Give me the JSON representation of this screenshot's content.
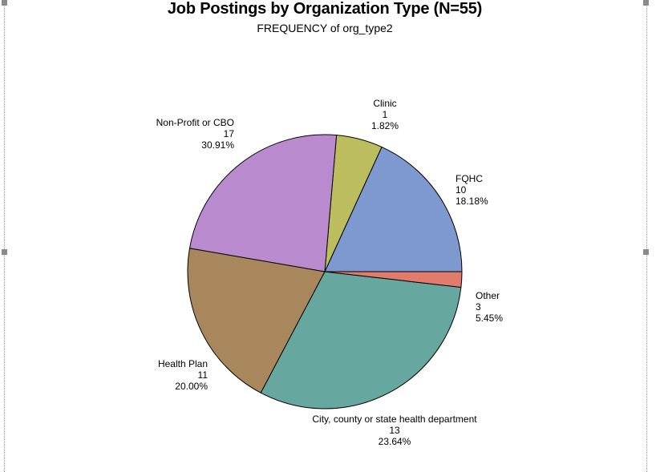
{
  "chart_data": {
    "type": "pie",
    "title": "Job Postings by Organization Type (N=55)",
    "subtitle": "FREQUENCY of org_type2",
    "slices": [
      {
        "label": "FQHC",
        "value": 10,
        "percent": "18.18%",
        "color": "#7e98d0"
      },
      {
        "label": "Other",
        "value": 3,
        "percent": "5.45%",
        "color": "#bcbd5e"
      },
      {
        "label": "City, county or state health department",
        "value": 13,
        "percent": "23.64%",
        "color": "#b98bce"
      },
      {
        "label": "Health Plan",
        "value": 11,
        "percent": "20.00%",
        "color": "#a9875c"
      },
      {
        "label": "Non-Profit or CBO",
        "value": 17,
        "percent": "30.91%",
        "color": "#66a8a0"
      },
      {
        "label": "Clinic",
        "value": 1,
        "percent": "1.82%",
        "color": "#e17c6c"
      }
    ]
  }
}
